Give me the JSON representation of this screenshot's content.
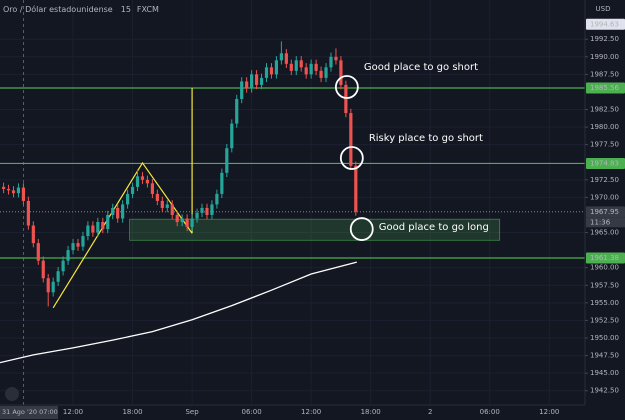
{
  "chart_data": {
    "type": "candlestick",
    "title": "Oro / Dólar estadounidense",
    "interval": "15",
    "source": "FXCM",
    "currency": "USD",
    "up_color": "#26a69a",
    "down_color": "#ef5350",
    "x": [
      5,
      5.5,
      6,
      6.5,
      7,
      7.5,
      8,
      8.5,
      9,
      9.5,
      10,
      10.5,
      11,
      11.5,
      12,
      12.5,
      13,
      13.5,
      14,
      14.5,
      15,
      15.5,
      16,
      16.5,
      17,
      17.5,
      18,
      18.5,
      19,
      19.5,
      20,
      20.5,
      21,
      21.5,
      22,
      22.5,
      23,
      23.5,
      24,
      24.5,
      25,
      25.5,
      26,
      26.5,
      27,
      27.5,
      28,
      28.5,
      29,
      29.5,
      30,
      30.5,
      31,
      31.5,
      32,
      32.5,
      33,
      33.5,
      34,
      34.5,
      35,
      35.5,
      36,
      36.5,
      37,
      37.5,
      38,
      38.5,
      39,
      39.5,
      40,
      40.5
    ],
    "open": [
      1971.5,
      1971.2,
      1971.0,
      1970.6,
      1971.4,
      1969.5,
      1966.0,
      1963.5,
      1961.0,
      1958.5,
      1956.5,
      1958.0,
      1959.5,
      1961.0,
      1962.5,
      1963.5,
      1963.0,
      1964.5,
      1966.0,
      1965.0,
      1966.5,
      1965.5,
      1967.5,
      1968.5,
      1967.0,
      1969.0,
      1970.5,
      1971.5,
      1973.0,
      1972.5,
      1972.0,
      1970.5,
      1969.5,
      1968.5,
      1969.0,
      1967.5,
      1966.5,
      1967.0,
      1965.8,
      1967.0,
      1967.8,
      1968.5,
      1967.5,
      1969.0,
      1970.5,
      1973.5,
      1977.0,
      1980.5,
      1984.0,
      1986.5,
      1985.5,
      1987.5,
      1986.0,
      1987.0,
      1988.5,
      1987.5,
      1989.5,
      1990.5,
      1989.0,
      1988.0,
      1989.5,
      1988.5,
      1987.5,
      1989.0,
      1988.0,
      1987.0,
      1988.5,
      1990.0,
      1989.5,
      1986.0,
      1982.0,
      1974.5
    ],
    "high": [
      1972.1,
      1971.8,
      1971.6,
      1972.0,
      1972.0,
      1970.1,
      1966.6,
      1964.1,
      1961.6,
      1959.1,
      1958.6,
      1960.1,
      1961.6,
      1963.1,
      1964.1,
      1964.1,
      1965.1,
      1966.6,
      1966.6,
      1967.1,
      1967.1,
      1968.1,
      1969.1,
      1969.1,
      1969.6,
      1971.1,
      1972.1,
      1974.0,
      1973.6,
      1973.1,
      1972.6,
      1971.1,
      1970.1,
      1969.6,
      1969.6,
      1968.1,
      1967.6,
      1967.6,
      1967.6,
      1968.4,
      1969.1,
      1969.1,
      1969.6,
      1971.1,
      1974.1,
      1977.6,
      1981.1,
      1984.6,
      1987.1,
      1987.1,
      1988.1,
      1988.1,
      1987.6,
      1989.1,
      1989.1,
      1990.1,
      1992.2,
      1991.1,
      1989.6,
      1990.1,
      1990.1,
      1989.1,
      1989.6,
      1989.6,
      1988.6,
      1989.1,
      1990.6,
      1991.2,
      1990.1,
      1986.6,
      1982.6,
      1975.1
    ],
    "low": [
      1970.6,
      1970.4,
      1970.0,
      1970.0,
      1968.9,
      1965.4,
      1962.9,
      1960.4,
      1957.9,
      1954.5,
      1955.9,
      1957.4,
      1958.9,
      1960.4,
      1961.9,
      1962.4,
      1962.4,
      1963.9,
      1964.4,
      1964.4,
      1964.9,
      1964.9,
      1966.9,
      1966.4,
      1966.4,
      1968.4,
      1969.9,
      1970.9,
      1971.9,
      1971.4,
      1969.9,
      1968.9,
      1967.9,
      1967.9,
      1966.9,
      1965.9,
      1965.9,
      1965.2,
      1965.2,
      1966.4,
      1967.2,
      1966.9,
      1966.9,
      1968.4,
      1969.9,
      1972.9,
      1976.4,
      1979.9,
      1983.4,
      1984.9,
      1984.9,
      1985.4,
      1985.4,
      1986.4,
      1986.9,
      1986.9,
      1988.9,
      1988.4,
      1987.4,
      1987.4,
      1987.9,
      1986.9,
      1986.9,
      1987.4,
      1986.4,
      1986.4,
      1987.9,
      1988.9,
      1985.4,
      1981.4,
      1973.9,
      1967.4
    ],
    "close": [
      1971.2,
      1971.0,
      1970.6,
      1971.4,
      1969.5,
      1966.0,
      1963.5,
      1961.0,
      1958.5,
      1956.5,
      1958.0,
      1959.5,
      1961.0,
      1962.5,
      1963.5,
      1963.0,
      1964.5,
      1966.0,
      1965.0,
      1966.5,
      1965.5,
      1967.5,
      1968.5,
      1967.0,
      1969.0,
      1970.5,
      1971.5,
      1973.0,
      1972.5,
      1972.0,
      1970.5,
      1969.5,
      1968.5,
      1969.0,
      1967.5,
      1966.5,
      1967.0,
      1965.8,
      1967.0,
      1967.8,
      1968.5,
      1967.5,
      1969.0,
      1970.5,
      1973.5,
      1977.0,
      1980.5,
      1984.0,
      1986.5,
      1985.5,
      1987.5,
      1986.0,
      1987.0,
      1988.5,
      1987.5,
      1989.5,
      1990.5,
      1989.0,
      1988.0,
      1989.5,
      1988.5,
      1987.5,
      1989.0,
      1988.0,
      1987.0,
      1988.5,
      1990.0,
      1989.5,
      1986.0,
      1982.0,
      1974.5,
      1967.95
    ],
    "moving_average": {
      "x": [
        4.64,
        8,
        12,
        16,
        20,
        24,
        28,
        32,
        36,
        40.6
      ],
      "values": [
        1946.5,
        1947.6,
        1948.6,
        1949.7,
        1950.9,
        1952.6,
        1954.6,
        1956.8,
        1959.1,
        1960.8
      ],
      "color": "#ffffff"
    },
    "levels": [
      1985.56,
      1974.83,
      1961.38
    ],
    "level_color": "#4caf50",
    "high_price": 1994.63,
    "last_price": 1967.95,
    "countdown": "11:36",
    "zone": {
      "x": [
        17.7,
        55
      ],
      "y": [
        1963.9,
        1966.9
      ],
      "color": "#4caf50"
    },
    "drawings": [
      {
        "x": [
          10,
          19,
          24
        ],
        "y": [
          1954.3,
          1974.9,
          1964.9
        ],
        "color": "#f5e63b"
      },
      {
        "x": [
          24,
          24
        ],
        "y": [
          1985.56,
          1964.9
        ],
        "color": "#f5e63b"
      }
    ],
    "annotations": [
      {
        "text": "Good place to go short",
        "x": 39.6,
        "y": 1985.7
      },
      {
        "text": "Risky place to go short",
        "x": 40.1,
        "y": 1975.6
      },
      {
        "text": "Good place to go long",
        "x": 41.1,
        "y": 1965.5
      }
    ],
    "crosshair_x": 7,
    "crosshair_label": "31 Ago '20   07:00",
    "xlim": [
      4.64,
      63.6
    ],
    "xticks": [
      {
        "value": 12,
        "label": "12:00"
      },
      {
        "value": 18,
        "label": "18:00"
      },
      {
        "value": 24,
        "label": "Sep"
      },
      {
        "value": 30,
        "label": "06:00"
      },
      {
        "value": 36,
        "label": "12:00"
      },
      {
        "value": 42,
        "label": "18:00"
      },
      {
        "value": 48,
        "label": "2"
      },
      {
        "value": 54,
        "label": "06:00"
      },
      {
        "value": 60,
        "label": "12:00"
      }
    ],
    "ylim": [
      1940.47,
      1998.08
    ],
    "yticks": [
      {
        "value": 1942.5,
        "label": "1942.50"
      },
      {
        "value": 1945,
        "label": "1945.00"
      },
      {
        "value": 1947.5,
        "label": "1947.50"
      },
      {
        "value": 1950,
        "label": "1950.00"
      },
      {
        "value": 1952.5,
        "label": "1952.50"
      },
      {
        "value": 1955,
        "label": "1955.00"
      },
      {
        "value": 1957.5,
        "label": "1957.50"
      },
      {
        "value": 1960,
        "label": "1960.00"
      },
      {
        "value": 1965,
        "label": "1965.00"
      },
      {
        "value": 1970,
        "label": "1970.00"
      },
      {
        "value": 1972.5,
        "label": "1972.50"
      },
      {
        "value": 1977.5,
        "label": "1977.50"
      },
      {
        "value": 1980,
        "label": "1980.00"
      },
      {
        "value": 1982.5,
        "label": "1982.50"
      },
      {
        "value": 1987.5,
        "label": "1987.50"
      },
      {
        "value": 1990,
        "label": "1990.00"
      },
      {
        "value": 1992.5,
        "label": "1992.50"
      }
    ],
    "grid": true
  }
}
